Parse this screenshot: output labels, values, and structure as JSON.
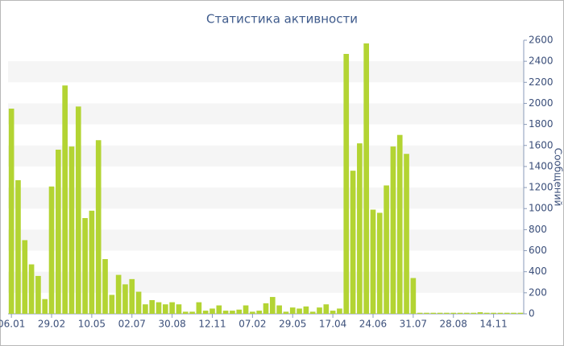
{
  "chart_data": {
    "type": "bar",
    "title": "Статистика активности",
    "y_axis_label": "Сообщений",
    "categories": [
      "06.01",
      null,
      null,
      null,
      null,
      null,
      "29.02",
      null,
      null,
      null,
      null,
      null,
      "10.05",
      null,
      null,
      null,
      null,
      null,
      "02.07",
      null,
      null,
      null,
      null,
      null,
      "30.08",
      null,
      null,
      null,
      null,
      null,
      "12.11",
      null,
      null,
      null,
      null,
      null,
      "07.02",
      null,
      null,
      null,
      null,
      null,
      "29.05",
      null,
      null,
      null,
      null,
      null,
      "17.04",
      null,
      null,
      null,
      null,
      null,
      "24.06",
      null,
      null,
      null,
      null,
      null,
      "31.07",
      null,
      null,
      null,
      null,
      null,
      "28.08",
      null,
      null,
      null,
      null,
      null,
      "14.11",
      null,
      null,
      null,
      null
    ],
    "values": [
      1950,
      1270,
      700,
      470,
      360,
      140,
      1210,
      1560,
      2170,
      1590,
      1970,
      910,
      980,
      1650,
      520,
      180,
      370,
      280,
      330,
      210,
      90,
      130,
      110,
      90,
      110,
      90,
      20,
      20,
      110,
      30,
      50,
      80,
      30,
      30,
      40,
      80,
      20,
      30,
      100,
      160,
      80,
      20,
      60,
      50,
      70,
      20,
      60,
      90,
      30,
      50,
      2470,
      1360,
      1620,
      2570,
      990,
      960,
      1220,
      1590,
      1700,
      1520,
      340,
      10,
      10,
      10,
      10,
      10,
      10,
      10,
      10,
      10,
      15,
      10,
      10,
      10,
      10,
      10,
      10
    ],
    "color": "#b3d433",
    "ylim": [
      0,
      2600
    ],
    "yticks": [
      0,
      200,
      400,
      600,
      800,
      1000,
      1200,
      1400,
      1600,
      1800,
      2000,
      2200,
      2400,
      2600
    ],
    "grid": true
  }
}
